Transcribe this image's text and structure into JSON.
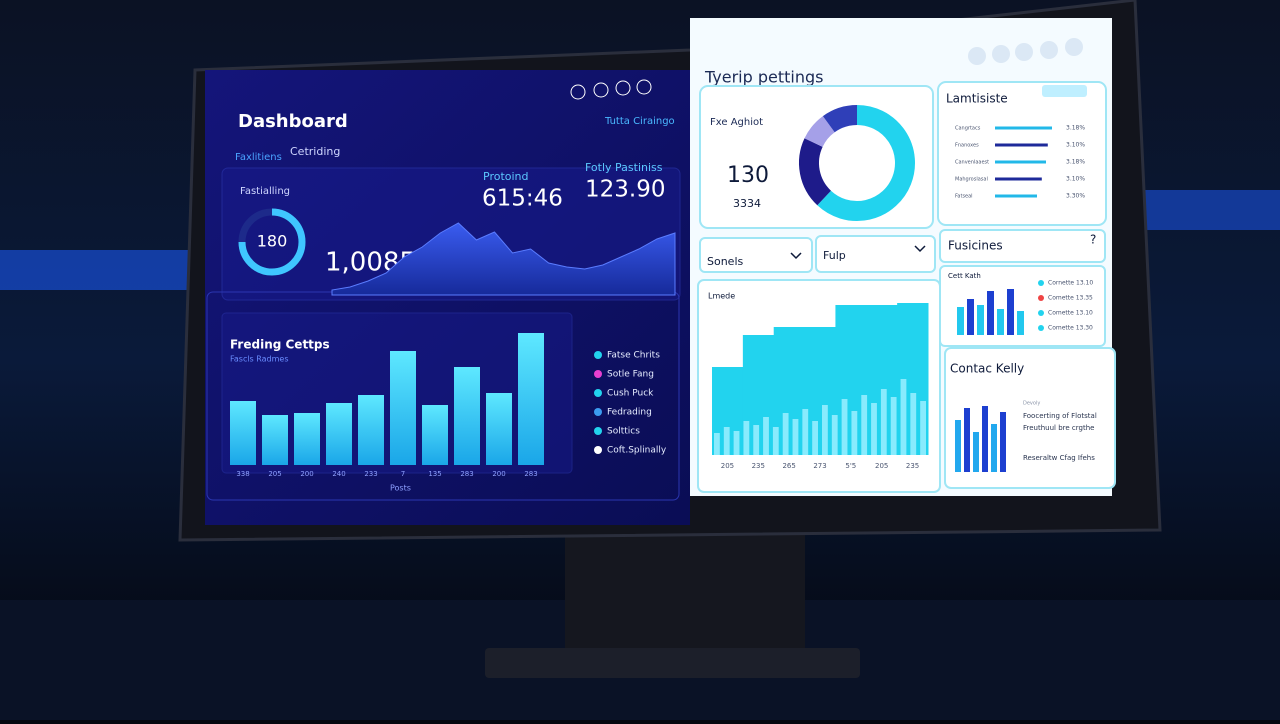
{
  "left": {
    "title": "Dashboard",
    "tabs": [
      "Faxlitiens",
      "Cetriding"
    ],
    "top_right": "Tutta Ciraingo",
    "gauge": {
      "label": "Fastialling",
      "value": 180,
      "fill": 75
    },
    "big_number": "1,0085",
    "area_values": [
      5,
      8,
      14,
      22,
      38,
      48,
      62,
      72,
      55,
      63,
      42,
      46,
      32,
      28,
      26,
      30,
      38,
      46,
      56,
      62
    ],
    "stats": [
      {
        "label": "Protoind",
        "value": "615:46"
      },
      {
        "label": "Fotly Pastiniss",
        "value": "123.90"
      }
    ],
    "bars": {
      "title": "Freding Cettps",
      "subtitle": "Fascls Radmes",
      "axis_label": "Posts",
      "labels": [
        "338",
        "205",
        "200",
        "240",
        "233",
        "7",
        "135",
        "283",
        "200",
        "283"
      ],
      "values": [
        64,
        50,
        52,
        62,
        70,
        114,
        60,
        98,
        72,
        132
      ]
    },
    "legend": [
      {
        "name": "Fatse Chrits",
        "color": "#22d3ee"
      },
      {
        "name": "Sotle Fang",
        "color": "#e63fd0"
      },
      {
        "name": "Cush Puck",
        "color": "#22d3ee"
      },
      {
        "name": "Fedrading",
        "color": "#3b9cf0"
      },
      {
        "name": "Solttics",
        "color": "#22d3ee"
      },
      {
        "name": "Coft.Splinally",
        "color": "#ffffff"
      }
    ]
  },
  "right": {
    "title": "Tyerip pettings",
    "card_a": {
      "label": "Fxe Aghiot",
      "value": "130",
      "sub": "3334",
      "donut": [
        62,
        20,
        8,
        10
      ],
      "donut_colors": [
        "#22d3ee",
        "#1e1b8a",
        "#a5a0e8",
        "#2f3fb8"
      ]
    },
    "card_b": {
      "title": "Lamtisiste",
      "rows": [
        {
          "label": "Cangrtacs",
          "value": 95,
          "text": "3.18%"
        },
        {
          "label": "Fnanoxes",
          "value": 88,
          "text": "3.10%"
        },
        {
          "label": "Canvenlaaest",
          "value": 85,
          "text": "3.18%"
        },
        {
          "label": "Mahgroslasal",
          "value": 78,
          "text": "3.10%"
        },
        {
          "label": "Fatseal",
          "value": 70,
          "text": "3.30%"
        }
      ]
    },
    "dropdowns": [
      "Sonels",
      "Fulp"
    ],
    "card_c": {
      "title": "Fusicines",
      "help": "?",
      "label": "Cett Kath",
      "bars": [
        28,
        36,
        30,
        44,
        26,
        46,
        24
      ],
      "legend": [
        {
          "name": "Cornette 13.10",
          "color": "#22d3ee"
        },
        {
          "name": "Comette 13.35",
          "color": "#ef4444"
        },
        {
          "name": "Comette 13.10",
          "color": "#22d3ee"
        },
        {
          "name": "Comette 13.30",
          "color": "#22d3ee"
        }
      ]
    },
    "card_main": {
      "label": "Lmede",
      "steps": [
        88,
        120,
        128,
        128,
        150,
        150,
        152
      ],
      "bars": [
        22,
        28,
        24,
        34,
        30,
        38,
        28,
        42,
        36,
        46,
        34,
        50,
        40,
        56,
        44,
        60,
        52,
        66,
        58,
        76,
        62,
        54
      ],
      "labels": [
        "205",
        "235",
        "265",
        "273",
        "5'5",
        "205",
        "235"
      ]
    },
    "card_d": {
      "title": "Contac Kelly",
      "small": "Devoly",
      "bars": [
        52,
        64,
        40,
        66,
        48,
        60
      ],
      "lines": [
        "Foocerting of Flotstal",
        "Freuthuul bre crgthe",
        "Reseraltw Cfag Ifehs"
      ]
    }
  }
}
